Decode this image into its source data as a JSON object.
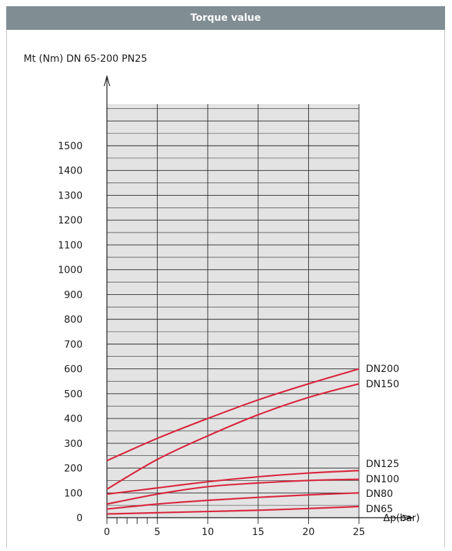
{
  "header": {
    "title": "Torque value"
  },
  "chart_data": {
    "type": "line",
    "title": "Torque value",
    "ylabel": "Mt (Nm) DN 65-200 PN25",
    "xlabel": "Δp(bar)",
    "xlim": [
      0,
      25
    ],
    "ylim": [
      0,
      1500
    ],
    "x_ticks": [
      0,
      5,
      10,
      15,
      20,
      25
    ],
    "y_ticks": [
      0,
      100,
      200,
      300,
      400,
      500,
      600,
      700,
      800,
      900,
      1000,
      1100,
      1200,
      1300,
      1400,
      1500
    ],
    "grid": true,
    "line_color": "#d9253c",
    "grid_background": "#e3e3e3",
    "series": [
      {
        "name": "DN200",
        "x": [
          0,
          5,
          10,
          15,
          20,
          25
        ],
        "y": [
          230,
          320,
          400,
          475,
          540,
          600
        ]
      },
      {
        "name": "DN150",
        "x": [
          0,
          5,
          10,
          15,
          20,
          25
        ],
        "y": [
          115,
          235,
          330,
          415,
          485,
          540
        ]
      },
      {
        "name": "DN125",
        "x": [
          0,
          5,
          10,
          15,
          20,
          25
        ],
        "y": [
          95,
          120,
          145,
          165,
          180,
          190
        ]
      },
      {
        "name": "DN100",
        "x": [
          0,
          5,
          10,
          15,
          20,
          25
        ],
        "y": [
          55,
          95,
          125,
          140,
          150,
          155
        ]
      },
      {
        "name": "DN80",
        "x": [
          0,
          5,
          10,
          15,
          20,
          25
        ],
        "y": [
          35,
          55,
          70,
          82,
          92,
          100
        ]
      },
      {
        "name": "DN65",
        "x": [
          0,
          5,
          10,
          15,
          20,
          25
        ],
        "y": [
          15,
          20,
          25,
          30,
          37,
          45
        ]
      }
    ]
  }
}
